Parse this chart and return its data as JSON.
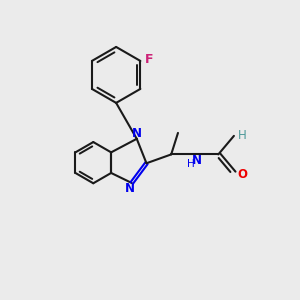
{
  "bg_color": "#ebebeb",
  "bond_color": "#1a1a1a",
  "N_color": "#0000ee",
  "O_color": "#ee0000",
  "F_color": "#cc2277",
  "teal_color": "#4d9999",
  "lw": 1.5,
  "dbo": 0.07,
  "figsize": [
    3.0,
    3.0
  ],
  "dpi": 100,
  "xlim": [
    0,
    10
  ],
  "ylim": [
    0,
    10
  ]
}
